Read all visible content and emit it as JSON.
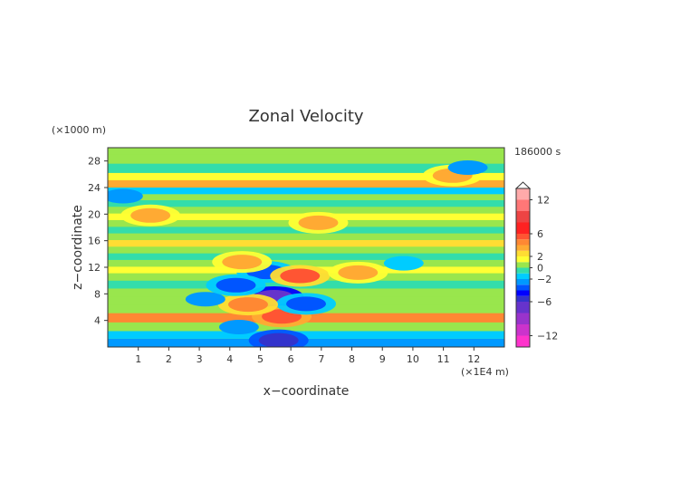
{
  "chart_data": {
    "type": "heatmap",
    "title": "Zonal Velocity",
    "xlabel": "x−coordinate",
    "ylabel": "z−coordinate",
    "x_unit": "(×1E4 m)",
    "y_unit": "(×1000 m)",
    "time_label": "186000 s",
    "x_ticks": [
      "1",
      "2",
      "3",
      "4",
      "5",
      "6",
      "7",
      "8",
      "9",
      "10",
      "11",
      "12"
    ],
    "y_ticks": [
      "4",
      "8",
      "12",
      "16",
      "20",
      "24",
      "28"
    ],
    "xlim": [
      0,
      13
    ],
    "ylim": [
      0,
      30
    ],
    "colorbar": {
      "labels": [
        "12",
        "6",
        "2",
        "0",
        "−2",
        "−6",
        "−12"
      ],
      "levels": [
        -14,
        -12,
        -10,
        -8,
        -6,
        -5,
        -4,
        -3,
        -2,
        -1,
        0,
        1,
        2,
        3,
        4,
        5,
        6,
        8,
        10,
        12,
        14
      ],
      "colors": [
        "#ff33cc",
        "#cc33cc",
        "#9933cc",
        "#6633cc",
        "#3333cc",
        "#0000ff",
        "#0055ff",
        "#0099ff",
        "#00ccff",
        "#33ddaa",
        "#99e64d",
        "#ffff33",
        "#ffdd33",
        "#ffaa33",
        "#ff8833",
        "#ff5533",
        "#ff2222",
        "#ee4444",
        "#ff7777",
        "#ffaaaa"
      ],
      "extend_top": true
    },
    "bands": [
      {
        "y": 0.7,
        "v": -2.5
      },
      {
        "y": 1.8,
        "v": -1.5
      },
      {
        "y": 3.0,
        "v": 0.8
      },
      {
        "y": 4.4,
        "v": 4.0
      },
      {
        "y": 5.8,
        "v": 0.6
      },
      {
        "y": 7.0,
        "v": 0.0
      },
      {
        "y": 8.2,
        "v": 0.9
      },
      {
        "y": 9.4,
        "v": -0.4
      },
      {
        "y": 10.6,
        "v": 0.3
      },
      {
        "y": 11.6,
        "v": 1.8
      },
      {
        "y": 12.6,
        "v": 0.2
      },
      {
        "y": 13.6,
        "v": -0.6
      },
      {
        "y": 14.6,
        "v": 0.5
      },
      {
        "y": 15.6,
        "v": 2.3
      },
      {
        "y": 16.6,
        "v": 0.9
      },
      {
        "y": 17.6,
        "v": -0.5
      },
      {
        "y": 18.6,
        "v": 0.7
      },
      {
        "y": 19.6,
        "v": 1.6
      },
      {
        "y": 20.6,
        "v": 0.0
      },
      {
        "y": 21.6,
        "v": -0.7
      },
      {
        "y": 22.6,
        "v": 0.4
      },
      {
        "y": 23.4,
        "v": -1.4
      },
      {
        "y": 24.6,
        "v": 3.2
      },
      {
        "y": 25.6,
        "v": 1.0
      },
      {
        "y": 26.8,
        "v": -0.2
      },
      {
        "y": 28.4,
        "v": 0.0
      },
      {
        "y": 29.6,
        "v": 0.2
      }
    ],
    "features": [
      {
        "x": 5.45,
        "z": 7.5,
        "v": -7.5
      },
      {
        "x": 5.2,
        "z": 11.3,
        "v": -3.5
      },
      {
        "x": 5.7,
        "z": 4.6,
        "v": 5.5
      },
      {
        "x": 5.6,
        "z": 1.0,
        "v": -6.0
      },
      {
        "x": 6.5,
        "z": 6.5,
        "v": -3.2
      },
      {
        "x": 4.6,
        "z": 6.4,
        "v": 4.8
      },
      {
        "x": 6.3,
        "z": 10.7,
        "v": 5.0
      },
      {
        "x": 4.4,
        "z": 12.8,
        "v": 3.5
      },
      {
        "x": 3.2,
        "z": 7.2,
        "v": -2.4
      },
      {
        "x": 4.2,
        "z": 9.3,
        "v": -3.4
      },
      {
        "x": 6.9,
        "z": 18.7,
        "v": 3.4
      },
      {
        "x": 1.4,
        "z": 19.8,
        "v": 3.2
      },
      {
        "x": 4.3,
        "z": 3.0,
        "v": -2.5
      },
      {
        "x": 9.7,
        "z": 12.6,
        "v": -2.0
      },
      {
        "x": 11.3,
        "z": 25.8,
        "v": 3.5
      },
      {
        "x": 11.8,
        "z": 27.0,
        "v": -2.5
      },
      {
        "x": 0.5,
        "z": 22.7,
        "v": -2.5
      },
      {
        "x": 8.2,
        "z": 11.2,
        "v": 3.3
      }
    ]
  }
}
